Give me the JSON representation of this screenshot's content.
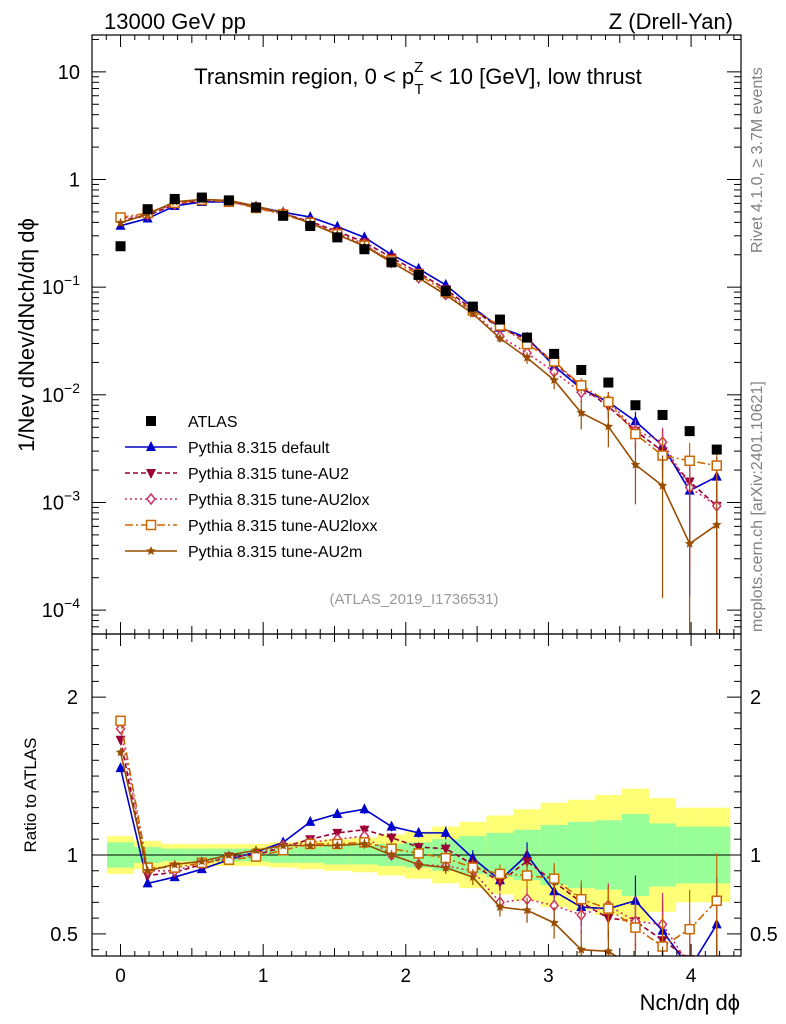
{
  "header": {
    "left": "13000 GeV pp",
    "right": "Z (Drell-Yan)"
  },
  "side_labels": {
    "rivet": "Rivet 4.1.0, ≥ 3.7M events",
    "mcplots": "mcplots.cern.ch [arXiv:2401.10621]"
  },
  "chart_data": {
    "type": "line",
    "title": "Transmin region, 0 < pTZ < 10 [GeV], low thrust",
    "title_parts": {
      "prefix": "Transmin region, 0 < p",
      "sup": "Z",
      "sub": "T",
      "suffix": " < 10 [GeV], low thrust"
    },
    "analysis_id": "(ATLAS_2019_I1736531)",
    "xlabel": "Nch/dη dϕ",
    "ylabel": "1/Nev dNev/dNch/dη dϕ",
    "ratio_ylabel": "Ratio to ATLAS",
    "x_ticks": [
      "0",
      "1",
      "2",
      "3",
      "4"
    ],
    "y_ticks_main": [
      "10",
      "1",
      "10−1",
      "10−2",
      "10−3",
      "10−4"
    ],
    "y_ticks_ratio": [
      "2",
      "1",
      "0.5"
    ],
    "xlim": [
      -0.2,
      4.35
    ],
    "ylim_main": [
      6e-05,
      22
    ],
    "ylim_ratio": [
      0.36,
      2.4
    ],
    "x": [
      0.0,
      0.19,
      0.38,
      0.57,
      0.76,
      0.95,
      1.14,
      1.33,
      1.52,
      1.71,
      1.9,
      2.09,
      2.28,
      2.47,
      2.66,
      2.85,
      3.04,
      3.23,
      3.42,
      3.61,
      3.8,
      3.99,
      4.18
    ],
    "data": {
      "name": "ATLAS",
      "values": [
        0.24,
        0.53,
        0.66,
        0.68,
        0.64,
        0.55,
        0.46,
        0.37,
        0.29,
        0.225,
        0.17,
        0.13,
        0.092,
        0.066,
        0.05,
        0.034,
        0.024,
        0.017,
        0.013,
        0.008,
        0.0065,
        0.0046,
        0.0031
      ]
    },
    "series": [
      {
        "name": "Pythia 8.315 default",
        "color": "#0000cc",
        "dash": "",
        "marker": "triangle-up",
        "ratio": [
          1.55,
          0.82,
          0.86,
          0.91,
          0.97,
          1.02,
          1.08,
          1.21,
          1.26,
          1.29,
          1.18,
          1.14,
          1.14,
          0.98,
          0.84,
          1.0,
          0.77,
          0.67,
          0.66,
          0.71,
          0.52,
          0.28,
          0.56
        ],
        "ratio_err": [
          0.02,
          0.02,
          0.02,
          0.02,
          0.02,
          0.02,
          0.02,
          0.02,
          0.02,
          0.03,
          0.03,
          0.03,
          0.04,
          0.05,
          0.06,
          0.08,
          0.1,
          0.12,
          0.14,
          0.16,
          0.2,
          0.25,
          0.3
        ]
      },
      {
        "name": "Pythia 8.315 tune-AU2",
        "color": "#990033",
        "dash": "5,3",
        "marker": "triangle-down",
        "ratio": [
          1.73,
          0.87,
          0.89,
          0.94,
          0.99,
          1.0,
          1.05,
          1.1,
          1.14,
          1.16,
          1.11,
          1.05,
          1.04,
          0.94,
          0.83,
          0.96,
          0.83,
          0.7,
          0.6,
          0.58,
          0.46,
          0.34,
          0.3
        ],
        "ratio_err": [
          0.02,
          0.02,
          0.02,
          0.02,
          0.02,
          0.02,
          0.02,
          0.02,
          0.02,
          0.03,
          0.03,
          0.03,
          0.04,
          0.05,
          0.06,
          0.08,
          0.1,
          0.12,
          0.14,
          0.16,
          0.2,
          0.25,
          0.3
        ]
      },
      {
        "name": "Pythia 8.315 tune-AU2lox",
        "color": "#cc3366",
        "dash": "2,3",
        "marker": "diamond",
        "ratio": [
          1.8,
          0.9,
          0.9,
          0.95,
          0.98,
          1.01,
          1.06,
          1.08,
          1.1,
          1.12,
          1.0,
          0.94,
          0.93,
          0.9,
          0.7,
          0.72,
          0.68,
          0.62,
          0.68,
          0.58,
          0.56,
          0.3,
          0.3
        ],
        "ratio_err": [
          0.02,
          0.02,
          0.02,
          0.02,
          0.02,
          0.02,
          0.02,
          0.02,
          0.02,
          0.03,
          0.03,
          0.03,
          0.04,
          0.05,
          0.06,
          0.08,
          0.1,
          0.12,
          0.14,
          0.16,
          0.2,
          0.25,
          0.3
        ]
      },
      {
        "name": "Pythia 8.315 tune-AU2loxx",
        "color": "#cc6600",
        "dash": "8,3,2,3",
        "marker": "open-square",
        "ratio": [
          1.85,
          0.92,
          0.92,
          0.95,
          0.97,
          0.99,
          1.03,
          1.07,
          1.07,
          1.08,
          1.04,
          1.01,
          0.98,
          0.92,
          0.88,
          0.87,
          0.85,
          0.72,
          0.66,
          0.54,
          0.42,
          0.53,
          0.71
        ],
        "ratio_err": [
          0.02,
          0.02,
          0.02,
          0.02,
          0.02,
          0.02,
          0.02,
          0.02,
          0.02,
          0.03,
          0.03,
          0.03,
          0.04,
          0.05,
          0.06,
          0.08,
          0.1,
          0.12,
          0.14,
          0.16,
          0.2,
          0.25,
          0.3
        ]
      },
      {
        "name": "Pythia 8.315 tune-AU2m",
        "color": "#994d00",
        "dash": "",
        "marker": "star",
        "ratio": [
          1.65,
          0.9,
          0.94,
          0.96,
          1.0,
          1.03,
          1.06,
          1.06,
          1.06,
          1.07,
          1.0,
          0.94,
          0.92,
          0.86,
          0.67,
          0.65,
          0.57,
          0.4,
          0.39,
          0.28,
          0.22,
          0.09,
          0.2
        ],
        "ratio_err": [
          0.02,
          0.02,
          0.02,
          0.02,
          0.02,
          0.02,
          0.02,
          0.02,
          0.02,
          0.03,
          0.03,
          0.03,
          0.04,
          0.05,
          0.06,
          0.08,
          0.1,
          0.12,
          0.14,
          0.16,
          0.2,
          0.25,
          0.3
        ]
      }
    ],
    "uncertainty_bands": {
      "stat": [
        0.08,
        0.05,
        0.04,
        0.04,
        0.04,
        0.04,
        0.05,
        0.05,
        0.06,
        0.06,
        0.07,
        0.08,
        0.1,
        0.12,
        0.14,
        0.16,
        0.19,
        0.21,
        0.22,
        0.26,
        0.2,
        0.18,
        0.18
      ],
      "total": [
        0.12,
        0.09,
        0.07,
        0.07,
        0.07,
        0.07,
        0.08,
        0.09,
        0.1,
        0.11,
        0.13,
        0.15,
        0.18,
        0.21,
        0.25,
        0.29,
        0.33,
        0.35,
        0.38,
        0.42,
        0.36,
        0.3,
        0.3
      ]
    }
  }
}
